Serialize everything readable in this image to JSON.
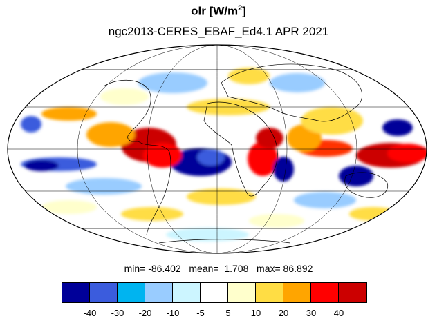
{
  "title": {
    "main": "olr [W/m",
    "sup": "2",
    "close": "]"
  },
  "subtitle": "ngc2013-CERES_EBAF_Ed4.1  APR 2021",
  "stats": {
    "text": "min= -86.402   mean=  1.708   max= 86.892"
  },
  "colorbar": {
    "colors": [
      "#000099",
      "#3b5cdd",
      "#00b4f0",
      "#99ccff",
      "#ccf5ff",
      "#ffffff",
      "#ffffcc",
      "#ffdd44",
      "#ffa500",
      "#ff0000",
      "#cc0000"
    ],
    "labels": [
      "-40",
      "-30",
      "-20",
      "-10",
      "-5",
      "5",
      "10",
      "20",
      "30",
      "40"
    ]
  },
  "map": {
    "projection": "mollweide",
    "grid": true,
    "background_color": "#ffffff"
  }
}
